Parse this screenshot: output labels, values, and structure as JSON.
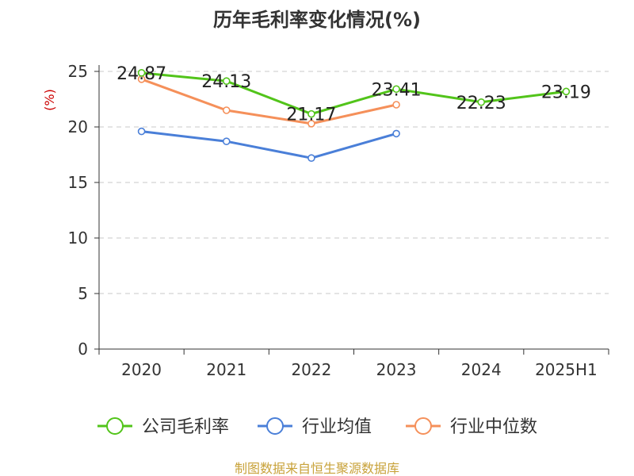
{
  "chart_data": {
    "type": "line",
    "title": "历年毛利率变化情况(%)",
    "ylabel": "(%)",
    "xlabel": "",
    "categories": [
      "2020",
      "2021",
      "2022",
      "2023",
      "2024",
      "2025H1"
    ],
    "ylim": [
      0,
      25
    ],
    "yticks": [
      0,
      5,
      10,
      15,
      20,
      25
    ],
    "grid": true,
    "legend_position": "bottom",
    "series": [
      {
        "name": "公司毛利率",
        "color": "#52c41a",
        "values": [
          24.87,
          24.13,
          21.17,
          23.41,
          22.23,
          23.19
        ],
        "labels": [
          "24.87",
          "24.13",
          "21.17",
          "23.41",
          "22.23",
          "23.19"
        ]
      },
      {
        "name": "行业均值",
        "color": "#4a7fd8",
        "values": [
          19.6,
          18.7,
          17.2,
          19.4,
          null,
          null
        ]
      },
      {
        "name": "行业中位数",
        "color": "#f5905a",
        "values": [
          24.3,
          21.5,
          20.3,
          22.0,
          null,
          null
        ]
      }
    ]
  },
  "source": "制图数据来自恒生聚源数据库"
}
